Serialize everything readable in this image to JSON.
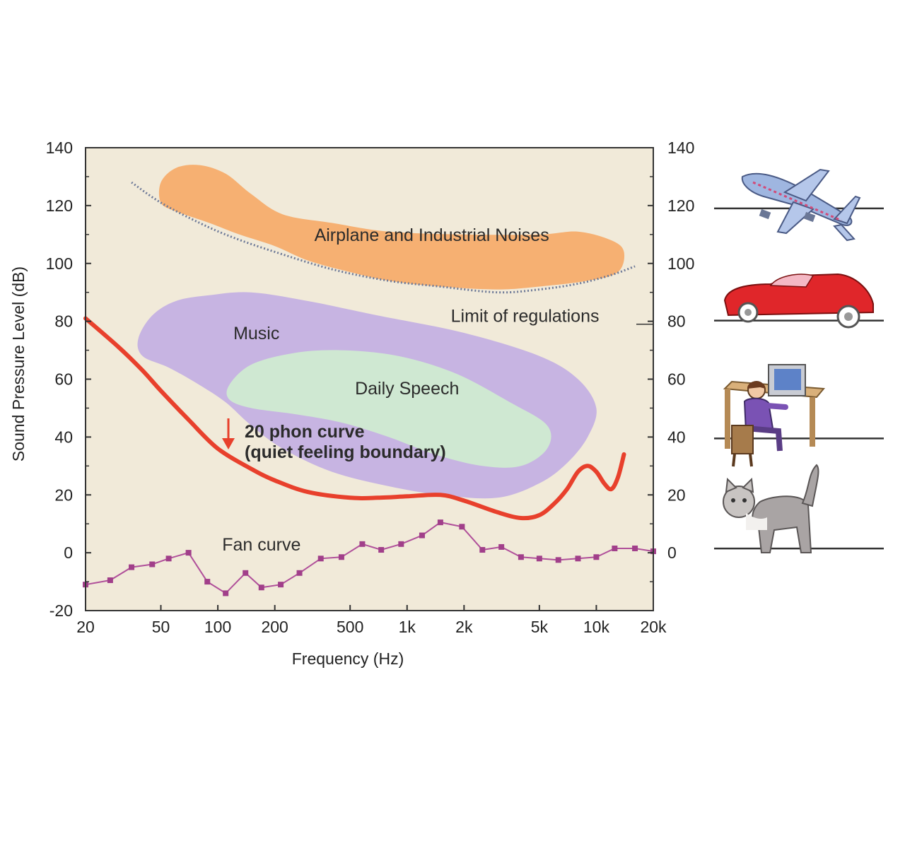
{
  "chart_data": {
    "type": "line",
    "xlabel": "Frequency (Hz)",
    "ylabel": "Sound Pressure Level (dB)",
    "x_scale": "log",
    "xlim": [
      20,
      20000
    ],
    "ylim": [
      -20,
      140
    ],
    "x_ticks": [
      20,
      50,
      100,
      200,
      500,
      1000,
      2000,
      5000,
      10000,
      20000
    ],
    "x_tick_labels": [
      "20",
      "50",
      "100",
      "200",
      "500",
      "1k",
      "2k",
      "5k",
      "10k",
      "20k"
    ],
    "y_ticks": [
      -20,
      0,
      20,
      40,
      60,
      80,
      100,
      120,
      140
    ],
    "y_tick_labels": [
      "-20",
      "0",
      "20",
      "40",
      "60",
      "80",
      "100",
      "120",
      "140"
    ],
    "right_y_ticks": [
      0,
      20,
      40,
      60,
      80,
      100,
      120,
      140
    ],
    "right_y_tick_labels": [
      "0",
      "20",
      "40",
      "60",
      "80",
      "100",
      "120",
      "140"
    ],
    "grid": false,
    "colors": {
      "plot_background": "#f1ead9",
      "phon_curve": "#e8402c",
      "fan_curve": "#b0509a",
      "regulation_limit": "#6e7a98",
      "airplane_region": "#f6b072",
      "music_region": "#c7b4e2",
      "speech_region": "#cfe8d2"
    },
    "regions": [
      {
        "label": "Airplane and Industrial Noises",
        "color": "#f6b072",
        "outline": [
          [
            50,
            128
          ],
          [
            60,
            133
          ],
          [
            80,
            134
          ],
          [
            110,
            131
          ],
          [
            150,
            124
          ],
          [
            220,
            117
          ],
          [
            400,
            114
          ],
          [
            800,
            111
          ],
          [
            2000,
            110
          ],
          [
            5000,
            110
          ],
          [
            8000,
            111
          ],
          [
            12000,
            108
          ],
          [
            14000,
            104
          ],
          [
            13000,
            97
          ],
          [
            9000,
            94
          ],
          [
            5000,
            92
          ],
          [
            3000,
            91
          ],
          [
            1500,
            92
          ],
          [
            800,
            94
          ],
          [
            500,
            97
          ],
          [
            300,
            101
          ],
          [
            200,
            106
          ],
          [
            130,
            110
          ],
          [
            90,
            114
          ],
          [
            60,
            118
          ],
          [
            50,
            121
          ]
        ]
      },
      {
        "label": "Music",
        "color": "#c7b4e2",
        "outline": [
          [
            38,
            74
          ],
          [
            45,
            82
          ],
          [
            60,
            87
          ],
          [
            90,
            89
          ],
          [
            150,
            90
          ],
          [
            300,
            87
          ],
          [
            700,
            82
          ],
          [
            2000,
            76
          ],
          [
            5000,
            68
          ],
          [
            8000,
            60
          ],
          [
            10000,
            50
          ],
          [
            9000,
            40
          ],
          [
            7000,
            31
          ],
          [
            5000,
            24
          ],
          [
            3000,
            19
          ],
          [
            1500,
            20
          ],
          [
            800,
            23
          ],
          [
            400,
            28
          ],
          [
            220,
            36
          ],
          [
            150,
            44
          ],
          [
            110,
            52
          ],
          [
            80,
            58
          ],
          [
            55,
            64
          ],
          [
            40,
            68
          ]
        ]
      },
      {
        "label": "Daily Speech",
        "color": "#cfe8d2",
        "outline": [
          [
            115,
            58
          ],
          [
            150,
            65
          ],
          [
            250,
            69
          ],
          [
            450,
            70
          ],
          [
            900,
            68
          ],
          [
            1800,
            62
          ],
          [
            3500,
            52
          ],
          [
            5500,
            44
          ],
          [
            5500,
            36
          ],
          [
            4000,
            30
          ],
          [
            2500,
            30
          ],
          [
            1400,
            34
          ],
          [
            800,
            40
          ],
          [
            450,
            45
          ],
          [
            250,
            48
          ],
          [
            150,
            50
          ],
          [
            115,
            53
          ]
        ]
      }
    ],
    "series": [
      {
        "name": "20 phon curve",
        "color": "#e8402c",
        "x": [
          20,
          30,
          40,
          50,
          70,
          100,
          150,
          200,
          300,
          500,
          700,
          1000,
          1500,
          2000,
          3000,
          4000,
          5000,
          6000,
          7000,
          8000,
          9000,
          10000,
          11000,
          12000,
          13000,
          14000
        ],
        "y": [
          81,
          71,
          63,
          56,
          46,
          36,
          29,
          25,
          21,
          19,
          19,
          19.5,
          20,
          18,
          14,
          12,
          13,
          17,
          22,
          28,
          30,
          28,
          24,
          22,
          26,
          34
        ]
      },
      {
        "name": "Fan curve",
        "color": "#b0509a",
        "x": [
          20,
          27,
          35,
          45,
          55,
          70,
          88,
          110,
          140,
          170,
          215,
          270,
          350,
          450,
          580,
          730,
          930,
          1200,
          1500,
          1950,
          2500,
          3150,
          4000,
          5000,
          6300,
          8000,
          10000,
          12500,
          16000,
          20000
        ],
        "y": [
          -11,
          -9.5,
          -5,
          -4,
          -2,
          0,
          -10,
          -14,
          -7,
          -12,
          -11,
          -7,
          -2,
          -1.5,
          3,
          1,
          3,
          6,
          10.5,
          9,
          1,
          2,
          -1.5,
          -2,
          -2.5,
          -2,
          -1.5,
          1.5,
          1.5,
          0.5
        ]
      },
      {
        "name": "Limit of regulations",
        "x": [
          35,
          50,
          80,
          120,
          200,
          400,
          800,
          1500,
          3000,
          5000,
          8000,
          12000,
          16000
        ],
        "y": [
          128,
          121,
          114,
          109,
          104,
          98,
          94,
          92,
          90,
          91,
          93,
          96,
          99
        ]
      }
    ],
    "annotations": [
      {
        "text": "Airplane and Industrial Noises",
        "x": 1350,
        "y": 110
      },
      {
        "text": "Limit of regulations",
        "x": 4200,
        "y": 82
      },
      {
        "text": "Music",
        "x": 160,
        "y": 76
      },
      {
        "text": "Daily Speech",
        "x": 1000,
        "y": 57
      },
      {
        "text": "20 phon curve",
        "x": 900,
        "y": 42
      },
      {
        "text": "(quiet feeling boundary)",
        "x": 1000,
        "y": 35
      },
      {
        "text": "Fan curve",
        "x": 170,
        "y": 3
      }
    ],
    "reference_levels": [
      {
        "icon": "airplane-icon",
        "y": 120
      },
      {
        "icon": "car-icon",
        "y": 80
      },
      {
        "icon": "office-worker-icon",
        "y": 40
      },
      {
        "icon": "cat-icon",
        "y": 0
      }
    ]
  }
}
